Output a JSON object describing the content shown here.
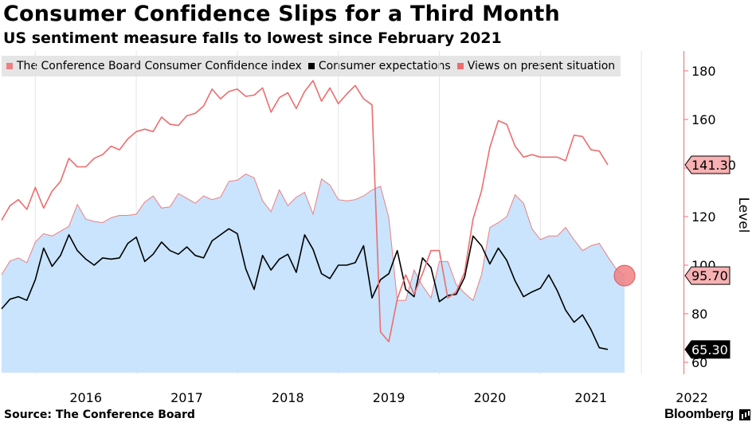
{
  "header": {
    "title": "Consumer Confidence Slips for a Third Month",
    "subtitle": "US sentiment measure falls to lowest since February 2021"
  },
  "footer": {
    "source": "Source: The Conference Board",
    "brand": "Bloomberg"
  },
  "chart_data": {
    "type": "line",
    "title": "Consumer Confidence Slips for a Third Month",
    "subtitle": "US sentiment measure falls to lowest since February 2021",
    "ylabel": "Level",
    "ylim": [
      55,
      187
    ],
    "yticks": [
      60,
      80,
      100,
      120,
      140,
      160,
      180
    ],
    "y_axis_side": "right",
    "xlim": [
      "2015-09",
      "2022-06"
    ],
    "xtick_labels": [
      "2016",
      "2017",
      "2018",
      "2019",
      "2020",
      "2021",
      "2022"
    ],
    "legend_position": "top-left",
    "grid": "vertical",
    "series": [
      {
        "name": "The Conference Board Consumer Confidence index",
        "style": "shaded area",
        "color": "#c9e4fc",
        "edge_color": "#ed7f82",
        "end_label": "95.70",
        "values": [
          [
            "2015-09",
            96.1
          ],
          [
            "2015-10",
            101.7
          ],
          [
            "2015-11",
            103.0
          ],
          [
            "2015-12",
            101.0
          ],
          [
            "2016-01",
            109.5
          ],
          [
            "2016-02",
            113.0
          ],
          [
            "2016-03",
            112.0
          ],
          [
            "2016-04",
            114.0
          ],
          [
            "2016-05",
            116.0
          ],
          [
            "2016-06",
            125.0
          ],
          [
            "2016-07",
            119.0
          ],
          [
            "2016-08",
            118.0
          ],
          [
            "2016-09",
            117.5
          ],
          [
            "2016-10",
            119.5
          ],
          [
            "2016-11",
            120.5
          ],
          [
            "2016-12",
            120.5
          ],
          [
            "2017-01",
            121.0
          ],
          [
            "2017-02",
            126.0
          ],
          [
            "2017-03",
            128.5
          ],
          [
            "2017-04",
            123.5
          ],
          [
            "2017-05",
            124.0
          ],
          [
            "2017-06",
            129.5
          ],
          [
            "2017-07",
            127.5
          ],
          [
            "2017-08",
            125.5
          ],
          [
            "2017-09",
            128.5
          ],
          [
            "2017-10",
            127.0
          ],
          [
            "2017-11",
            128.0
          ],
          [
            "2017-12",
            134.5
          ],
          [
            "2018-01",
            135.0
          ],
          [
            "2018-02",
            137.5
          ],
          [
            "2018-03",
            136.0
          ],
          [
            "2018-04",
            126.5
          ],
          [
            "2018-05",
            122.0
          ],
          [
            "2018-06",
            131.0
          ],
          [
            "2018-07",
            124.5
          ],
          [
            "2018-08",
            128.0
          ],
          [
            "2018-09",
            130.0
          ],
          [
            "2018-10",
            121.0
          ],
          [
            "2018-11",
            135.5
          ],
          [
            "2018-12",
            133.0
          ],
          [
            "2019-01",
            127.0
          ],
          [
            "2019-02",
            126.5
          ],
          [
            "2019-03",
            127.0
          ],
          [
            "2019-04",
            128.5
          ],
          [
            "2019-05",
            131.0
          ],
          [
            "2019-06",
            132.5
          ],
          [
            "2019-07",
            119.5
          ],
          [
            "2019-08",
            85.5
          ],
          [
            "2019-09",
            85.5
          ],
          [
            "2019-10",
            98.0
          ],
          [
            "2019-11",
            91.5
          ],
          [
            "2019-12",
            86.5
          ],
          [
            "2020-01",
            101.5
          ],
          [
            "2020-02",
            101.5
          ],
          [
            "2020-03",
            92.0
          ],
          [
            "2020-04",
            88.5
          ],
          [
            "2020-05",
            85.5
          ],
          [
            "2020-06",
            96.0
          ],
          [
            "2020-07",
            115.5
          ],
          [
            "2020-08",
            117.5
          ],
          [
            "2020-09",
            120.0
          ],
          [
            "2020-10",
            129.0
          ],
          [
            "2020-11",
            125.5
          ],
          [
            "2020-12",
            115.0
          ],
          [
            "2021-01",
            110.5
          ],
          [
            "2021-02",
            112.0
          ],
          [
            "2021-03",
            112.0
          ],
          [
            "2021-04",
            115.5
          ],
          [
            "2021-05",
            110.5
          ],
          [
            "2021-06",
            106.0
          ],
          [
            "2021-07",
            108.0
          ],
          [
            "2021-08",
            109.0
          ],
          [
            "2021-09",
            103.5
          ],
          [
            "2021-10",
            98.4
          ],
          [
            "2021-11",
            95.7
          ]
        ]
      },
      {
        "name": "Consumer expectations",
        "style": "line",
        "color": "#000000",
        "end_label": "65.30",
        "values": [
          [
            "2015-09",
            82.0
          ],
          [
            "2015-10",
            86.0
          ],
          [
            "2015-11",
            87.0
          ],
          [
            "2015-12",
            85.5
          ],
          [
            "2016-01",
            94.0
          ],
          [
            "2016-02",
            107.0
          ],
          [
            "2016-03",
            99.5
          ],
          [
            "2016-04",
            104.0
          ],
          [
            "2016-05",
            112.5
          ],
          [
            "2016-06",
            106.0
          ],
          [
            "2016-07",
            102.5
          ],
          [
            "2016-08",
            100.0
          ],
          [
            "2016-09",
            103.0
          ],
          [
            "2016-10",
            102.5
          ],
          [
            "2016-11",
            103.0
          ],
          [
            "2016-12",
            109.0
          ],
          [
            "2017-01",
            111.5
          ],
          [
            "2017-02",
            101.5
          ],
          [
            "2017-03",
            104.5
          ],
          [
            "2017-04",
            109.5
          ],
          [
            "2017-05",
            106.0
          ],
          [
            "2017-06",
            104.5
          ],
          [
            "2017-07",
            107.5
          ],
          [
            "2017-08",
            104.0
          ],
          [
            "2017-09",
            103.0
          ],
          [
            "2017-10",
            110.0
          ],
          [
            "2017-11",
            112.5
          ],
          [
            "2017-12",
            115.0
          ],
          [
            "2018-01",
            113.0
          ],
          [
            "2018-02",
            98.5
          ],
          [
            "2018-03",
            90.0
          ],
          [
            "2018-04",
            104.0
          ],
          [
            "2018-05",
            98.0
          ],
          [
            "2018-06",
            102.5
          ],
          [
            "2018-07",
            104.5
          ],
          [
            "2018-08",
            97.0
          ],
          [
            "2018-09",
            112.5
          ],
          [
            "2018-10",
            106.5
          ],
          [
            "2018-11",
            96.5
          ],
          [
            "2018-12",
            94.5
          ],
          [
            "2019-01",
            100.0
          ],
          [
            "2019-02",
            100.0
          ],
          [
            "2019-03",
            101.0
          ],
          [
            "2019-04",
            108.0
          ],
          [
            "2019-05",
            86.5
          ],
          [
            "2019-06",
            94.0
          ],
          [
            "2019-07",
            96.5
          ],
          [
            "2019-08",
            106.0
          ],
          [
            "2019-09",
            90.0
          ],
          [
            "2019-10",
            87.0
          ],
          [
            "2019-11",
            103.0
          ],
          [
            "2019-12",
            99.0
          ],
          [
            "2020-01",
            85.0
          ],
          [
            "2020-02",
            87.5
          ],
          [
            "2020-03",
            88.0
          ],
          [
            "2020-04",
            95.0
          ],
          [
            "2020-05",
            112.0
          ],
          [
            "2020-06",
            108.0
          ],
          [
            "2020-07",
            100.5
          ],
          [
            "2020-08",
            107.0
          ],
          [
            "2020-09",
            102.0
          ],
          [
            "2020-10",
            93.5
          ],
          [
            "2020-11",
            87.0
          ],
          [
            "2020-12",
            89.0
          ],
          [
            "2021-01",
            90.5
          ],
          [
            "2021-02",
            96.0
          ],
          [
            "2021-03",
            89.5
          ],
          [
            "2021-04",
            81.5
          ],
          [
            "2021-05",
            76.5
          ],
          [
            "2021-06",
            79.5
          ],
          [
            "2021-07",
            73.5
          ],
          [
            "2021-08",
            66.0
          ],
          [
            "2021-09",
            65.3
          ]
        ]
      },
      {
        "name": "Views on present situation",
        "style": "line",
        "color": "#ec6d6f",
        "end_label": "141.30",
        "values": [
          [
            "2015-09",
            118.5
          ],
          [
            "2015-10",
            124.5
          ],
          [
            "2015-11",
            127.0
          ],
          [
            "2015-12",
            123.0
          ],
          [
            "2016-01",
            132.0
          ],
          [
            "2016-02",
            123.5
          ],
          [
            "2016-03",
            130.5
          ],
          [
            "2016-04",
            134.5
          ],
          [
            "2016-05",
            144.0
          ],
          [
            "2016-06",
            140.5
          ],
          [
            "2016-07",
            140.5
          ],
          [
            "2016-08",
            144.0
          ],
          [
            "2016-09",
            145.5
          ],
          [
            "2016-10",
            149.0
          ],
          [
            "2016-11",
            147.5
          ],
          [
            "2016-12",
            152.0
          ],
          [
            "2017-01",
            155.0
          ],
          [
            "2017-02",
            156.0
          ],
          [
            "2017-03",
            155.0
          ],
          [
            "2017-04",
            161.0
          ],
          [
            "2017-05",
            158.0
          ],
          [
            "2017-06",
            157.5
          ],
          [
            "2017-07",
            161.5
          ],
          [
            "2017-08",
            162.5
          ],
          [
            "2017-09",
            165.5
          ],
          [
            "2017-10",
            172.5
          ],
          [
            "2017-11",
            168.5
          ],
          [
            "2017-12",
            171.5
          ],
          [
            "2018-01",
            172.5
          ],
          [
            "2018-02",
            169.5
          ],
          [
            "2018-03",
            170.0
          ],
          [
            "2018-04",
            173.0
          ],
          [
            "2018-05",
            163.0
          ],
          [
            "2018-06",
            169.0
          ],
          [
            "2018-07",
            171.0
          ],
          [
            "2018-08",
            164.5
          ],
          [
            "2018-09",
            171.5
          ],
          [
            "2018-10",
            176.0
          ],
          [
            "2018-11",
            167.5
          ],
          [
            "2018-12",
            173.0
          ],
          [
            "2019-01",
            166.5
          ],
          [
            "2019-02",
            170.5
          ],
          [
            "2019-03",
            174.0
          ],
          [
            "2019-04",
            168.5
          ],
          [
            "2019-05",
            166.0
          ],
          [
            "2019-06",
            72.5
          ],
          [
            "2019-07",
            68.5
          ],
          [
            "2019-08",
            86.0
          ],
          [
            "2019-09",
            96.0
          ],
          [
            "2019-10",
            88.0
          ],
          [
            "2019-11",
            96.5
          ],
          [
            "2019-12",
            106.0
          ],
          [
            "2020-01",
            106.0
          ],
          [
            "2020-02",
            86.5
          ],
          [
            "2020-03",
            89.0
          ],
          [
            "2020-04",
            97.0
          ],
          [
            "2020-05",
            119.0
          ],
          [
            "2020-06",
            130.5
          ],
          [
            "2020-07",
            148.5
          ],
          [
            "2020-08",
            159.5
          ],
          [
            "2020-09",
            158.0
          ],
          [
            "2020-10",
            149.0
          ],
          [
            "2020-11",
            144.5
          ],
          [
            "2020-12",
            145.5
          ],
          [
            "2021-01",
            144.5
          ],
          [
            "2021-02",
            144.5
          ],
          [
            "2021-03",
            144.5
          ],
          [
            "2021-04",
            143.0
          ],
          [
            "2021-05",
            153.5
          ],
          [
            "2021-06",
            153.0
          ],
          [
            "2021-07",
            147.5
          ],
          [
            "2021-08",
            147.0
          ],
          [
            "2021-09",
            141.3
          ]
        ]
      }
    ]
  }
}
